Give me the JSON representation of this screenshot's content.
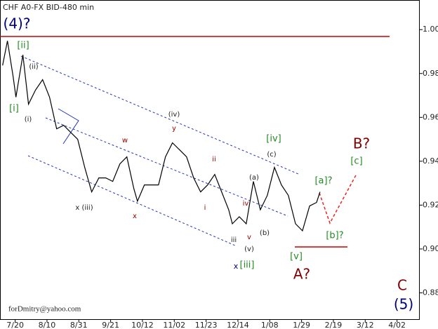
{
  "chart_data": {
    "type": "line",
    "title": "CHF A0-FX BID-480 min",
    "footer": "forDmitry@yahoo.com",
    "xlim": [
      -10,
      267
    ],
    "xticks": [
      {
        "value": 0,
        "label": "7/20"
      },
      {
        "value": 21,
        "label": "8/10"
      },
      {
        "value": 42,
        "label": "8/31"
      },
      {
        "value": 63,
        "label": "9/21"
      },
      {
        "value": 84,
        "label": "10/12"
      },
      {
        "value": 105,
        "label": "11/02"
      },
      {
        "value": 126,
        "label": "11/23"
      },
      {
        "value": 147,
        "label": "12/14"
      },
      {
        "value": 168,
        "label": "1/08"
      },
      {
        "value": 189,
        "label": "1/29"
      },
      {
        "value": 210,
        "label": "2/19"
      },
      {
        "value": 231,
        "label": "3/12"
      },
      {
        "value": 252,
        "label": "4/02"
      }
    ],
    "ylim": [
      0.868,
      1.0135
    ],
    "yticks": [
      0.88,
      {
        "value": 0.9,
        "label": "0.90"
      },
      0.92,
      0.94,
      0.96,
      0.98,
      {
        "value": 1,
        "label": "1.00"
      }
    ],
    "series": [
      {
        "name": "CHF A0-FX",
        "color": "#000000",
        "x": [
          -8.3,
          -5.1,
          -1.4,
          0.5,
          5.1,
          8.8,
          13.4,
          18.1,
          22.7,
          27.4,
          32.0,
          36.6,
          41.3,
          45.9,
          50.5,
          55.2,
          59.8,
          64.4,
          69.1,
          73.7,
          78.3,
          80.7,
          85.3,
          89.9,
          94.6,
          99.2,
          103.8,
          108.5,
          113.1,
          117.8,
          122.4,
          127.0,
          131.7,
          136.3,
          140.9,
          143.3,
          147.9,
          152.5,
          157.2,
          161.8,
          166.4,
          171.1,
          175.7,
          180.3,
          185.0,
          189.6,
          194.3,
          198.9,
          201.2
        ],
        "values": [
          0.9837,
          0.9949,
          0.9788,
          0.9692,
          0.9885,
          0.966,
          0.9724,
          0.9772,
          0.9692,
          0.9548,
          0.9564,
          0.9532,
          0.95,
          0.9372,
          0.926,
          0.9324,
          0.9324,
          0.9308,
          0.9388,
          0.942,
          0.9276,
          0.9218,
          0.9292,
          0.9292,
          0.9292,
          0.942,
          0.9484,
          0.9452,
          0.942,
          0.9324,
          0.926,
          0.9292,
          0.934,
          0.926,
          0.9179,
          0.9115,
          0.9147,
          0.9115,
          0.9308,
          0.9179,
          0.9244,
          0.9372,
          0.9292,
          0.9244,
          0.9115,
          0.9083,
          0.9196,
          0.9212,
          0.926
        ]
      }
    ],
    "annotations": [
      {
        "text": "(4)?",
        "color": "#000080"
      },
      {
        "text": "[ii]",
        "color": "#228b22"
      },
      {
        "text": "(ii)",
        "color": "#222"
      },
      {
        "text": "[i]",
        "color": "#228b22"
      },
      {
        "text": "(i)",
        "color": "#222"
      },
      {
        "text": "(iv)",
        "color": "#222"
      },
      {
        "text": "y",
        "color": "#a00000"
      },
      {
        "text": "w",
        "color": "#a00000"
      },
      {
        "text": "x (iii)",
        "color": "#222"
      },
      {
        "text": "x",
        "color": "#a00000"
      },
      {
        "text": "ii",
        "color": "#a00000"
      },
      {
        "text": "i",
        "color": "#a00000"
      },
      {
        "text": "iii",
        "color": "#222"
      },
      {
        "text": "v",
        "color": "#a00000"
      },
      {
        "text": "(v)",
        "color": "#222"
      },
      {
        "text": "x",
        "color": "#000080"
      },
      {
        "text": "[iii]",
        "color": "#228b22"
      },
      {
        "text": "(a)",
        "color": "#222"
      },
      {
        "text": "iv",
        "color": "#a00000"
      },
      {
        "text": "(b)",
        "color": "#222"
      },
      {
        "text": "(c)",
        "color": "#222"
      },
      {
        "text": "[iv]",
        "color": "#228b22"
      },
      {
        "text": "[v]",
        "color": "#228b22"
      },
      {
        "text": "A?",
        "color": "#800000"
      },
      {
        "text": "[a]?",
        "color": "#228b22"
      },
      {
        "text": "[b]?",
        "color": "#228b22"
      },
      {
        "text": "[c]",
        "color": "#228b22"
      },
      {
        "text": "B?",
        "color": "#800000"
      },
      {
        "text": "C",
        "color": "#800000"
      },
      {
        "text": "(5)",
        "color": "#000080"
      }
    ]
  }
}
